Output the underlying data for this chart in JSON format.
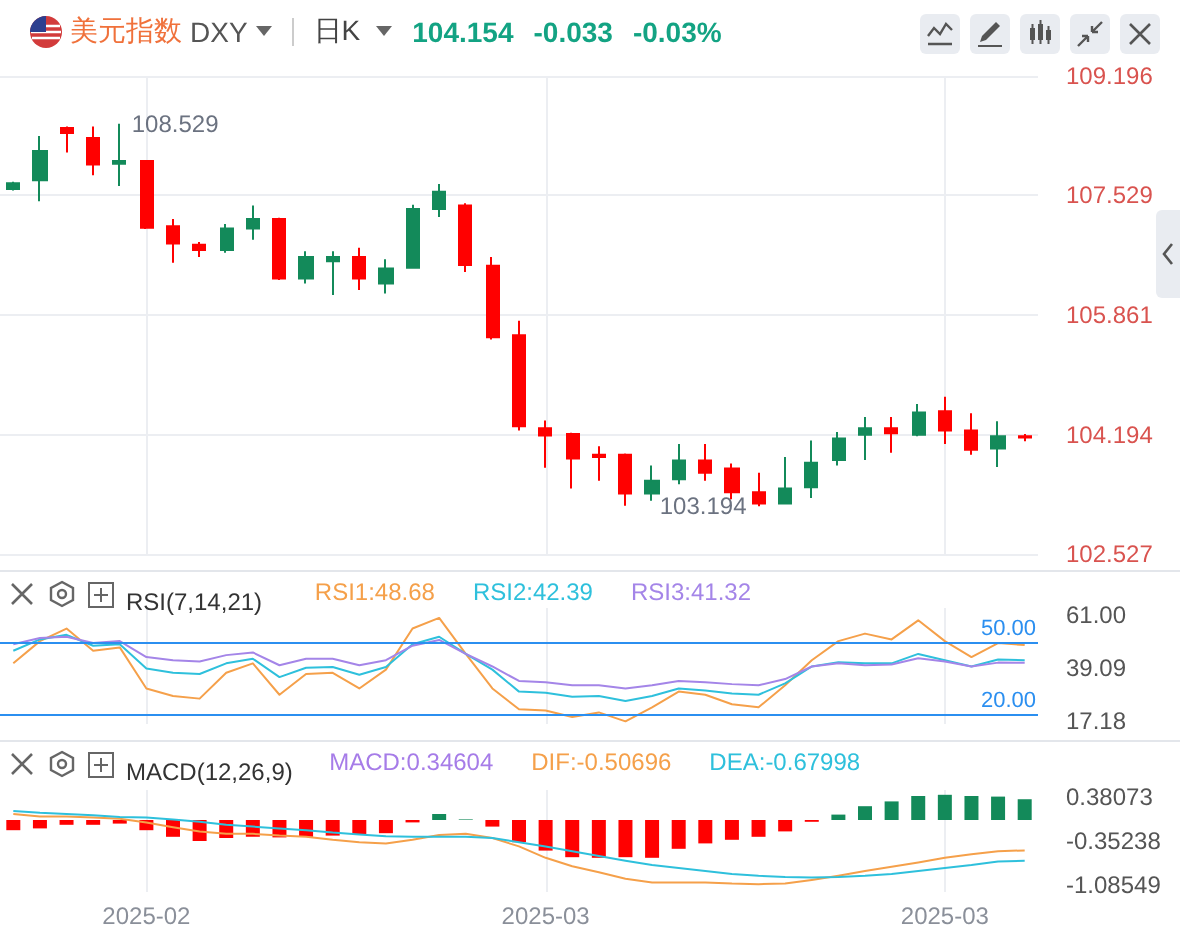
{
  "chart_data": [
    {
      "type": "candlestick",
      "title": "美元指数",
      "subtitle": "DXY",
      "annotations": [
        "日K",
        "104.154",
        "-0.033",
        "-0.03%",
        "108.529",
        "103.194"
      ],
      "categories": [
        null,
        null,
        null,
        null,
        null,
        "2025-02",
        null,
        null,
        null,
        null,
        null,
        null,
        null,
        null,
        null,
        null,
        null,
        null,
        null,
        null,
        "2025-03",
        null,
        null,
        null,
        null,
        null,
        null,
        null,
        null,
        null,
        null,
        null,
        null,
        null,
        null,
        "2025-03",
        null,
        null,
        null
      ],
      "ohlc": [
        [
          107.62,
          107.72,
          107.6,
          107.7
        ],
        [
          107.74,
          108.36,
          107.45,
          108.15
        ],
        [
          108.47,
          108.49,
          108.13,
          108.4
        ],
        [
          108.33,
          108.49,
          107.81,
          107.96
        ],
        [
          107.97,
          108.529,
          107.66,
          108.01
        ],
        [
          108.01,
          108.02,
          107.06,
          107.08
        ],
        [
          107.1,
          107.2,
          106.59,
          106.86
        ],
        [
          106.84,
          106.88,
          106.67,
          106.77
        ],
        [
          106.77,
          107.13,
          106.73,
          107.07
        ],
        [
          107.07,
          107.39,
          106.91,
          107.2
        ],
        [
          107.2,
          107.22,
          106.35,
          106.37
        ],
        [
          106.37,
          106.75,
          106.3,
          106.67
        ],
        [
          106.61,
          106.75,
          106.14,
          106.67
        ],
        [
          106.67,
          106.8,
          106.21,
          106.37
        ],
        [
          106.3,
          106.64,
          106.16,
          106.51
        ],
        [
          106.52,
          107.4,
          106.51,
          107.34
        ],
        [
          107.34,
          107.69,
          107.23,
          107.58
        ],
        [
          107.39,
          107.42,
          106.46,
          106.56
        ],
        [
          106.55,
          106.67,
          105.52,
          105.55
        ],
        [
          105.58,
          105.78,
          104.25,
          104.31
        ],
        [
          104.28,
          104.39,
          103.73,
          104.18
        ],
        [
          104.2,
          104.22,
          103.44,
          103.86
        ],
        [
          103.91,
          104.03,
          103.55,
          103.88
        ],
        [
          103.91,
          103.93,
          103.2,
          103.37
        ],
        [
          103.37,
          103.76,
          103.27,
          103.55
        ],
        [
          103.57,
          104.06,
          103.5,
          103.83
        ],
        [
          103.83,
          104.06,
          103.55,
          103.66
        ],
        [
          103.72,
          103.79,
          103.29,
          103.39
        ],
        [
          103.39,
          103.66,
          103.194,
          103.23
        ],
        [
          103.23,
          103.88,
          103.23,
          103.44
        ],
        [
          103.46,
          104.11,
          103.31,
          103.8
        ],
        [
          103.84,
          104.23,
          103.76,
          104.14
        ],
        [
          104.19,
          104.44,
          103.84,
          104.28
        ],
        [
          104.28,
          104.44,
          103.94,
          104.21
        ],
        [
          104.19,
          104.62,
          104.17,
          104.5
        ],
        [
          104.52,
          104.72,
          104.06,
          104.25
        ],
        [
          104.25,
          104.49,
          103.91,
          103.98
        ],
        [
          104.0,
          104.38,
          103.74,
          104.17
        ],
        [
          104.17,
          104.2,
          104.1,
          104.154
        ]
      ],
      "colors": [
        "#138a5a",
        "#138a5a",
        "#ff0000",
        "#ff0000",
        "#138a5a",
        "#ff0000",
        "#ff0000",
        "#ff0000",
        "#138a5a",
        "#138a5a",
        "#ff0000",
        "#138a5a",
        "#138a5a",
        "#ff0000",
        "#138a5a",
        "#138a5a",
        "#138a5a",
        "#ff0000",
        "#ff0000",
        "#ff0000",
        "#ff0000",
        "#ff0000",
        "#ff0000",
        "#ff0000",
        "#138a5a",
        "#138a5a",
        "#ff0000",
        "#ff0000",
        "#ff0000",
        "#138a5a",
        "#138a5a",
        "#138a5a",
        "#138a5a",
        "#ff0000",
        "#138a5a",
        "#ff0000",
        "#ff0000",
        "#138a5a",
        "#ff0000"
      ],
      "ylim": [
        102.527,
        109.196
      ],
      "yticks": [
        102.527,
        104.194,
        105.861,
        107.529,
        109.196
      ],
      "grid": true,
      "tick_labels": "y"
    },
    {
      "type": "line",
      "title": "RSI(7,14,21)",
      "legend": "top",
      "categories": [
        null,
        null,
        null,
        null,
        null,
        "2025-02",
        null,
        null,
        null,
        null,
        null,
        null,
        null,
        null,
        null,
        null,
        null,
        null,
        null,
        null,
        "2025-03",
        null,
        null,
        null,
        null,
        null,
        null,
        null,
        null,
        null,
        null,
        null,
        null,
        null,
        null,
        "2025-03",
        null,
        null,
        null
      ],
      "series": [
        {
          "name": "RSI1:48.68",
          "color": "#f5a04a",
          "values": [
            41.1,
            50.3,
            55.5,
            46.3,
            47.7,
            30.7,
            27.6,
            26.5,
            37.2,
            41.1,
            28.1,
            36.7,
            37.2,
            30.7,
            38.5,
            55.5,
            59.9,
            45.0,
            30.7,
            22.1,
            21.6,
            18.9,
            20.8,
            17.1,
            22.9,
            29.4,
            28.1,
            24.2,
            22.9,
            32.0,
            42.4,
            50.3,
            53.4,
            51.0,
            58.9,
            50.3,
            43.7,
            49.5,
            48.68
          ]
        },
        {
          "name": "RSI2:42.39",
          "color": "#2ec0dc",
          "values": [
            46.3,
            51.0,
            52.9,
            48.4,
            49.0,
            39.0,
            37.2,
            36.7,
            41.1,
            43.0,
            35.4,
            39.3,
            39.6,
            36.4,
            39.6,
            49.0,
            52.1,
            45.0,
            38.5,
            29.4,
            28.9,
            27.3,
            27.6,
            25.5,
            27.6,
            30.7,
            29.9,
            28.6,
            28.1,
            32.8,
            39.8,
            41.6,
            41.1,
            41.1,
            45.0,
            42.4,
            39.8,
            42.7,
            42.39
          ]
        },
        {
          "name": "RSI3:41.32",
          "color": "#a485e8",
          "values": [
            49.0,
            51.6,
            52.1,
            49.5,
            50.3,
            43.7,
            42.4,
            41.9,
            44.5,
            45.6,
            40.3,
            43.0,
            43.0,
            40.3,
            42.4,
            48.4,
            50.8,
            45.0,
            39.8,
            33.8,
            33.3,
            32.0,
            32.0,
            30.7,
            32.0,
            33.8,
            33.3,
            32.5,
            32.0,
            34.6,
            39.8,
            41.1,
            40.3,
            40.6,
            43.2,
            41.9,
            39.8,
            41.4,
            41.32
          ]
        }
      ],
      "ref_lines": [
        {
          "axis": "y",
          "value": 50,
          "label": "50.00",
          "color": "#2b8ff0"
        },
        {
          "axis": "y",
          "value": 20,
          "label": "20.00",
          "color": "#2b8ff0"
        }
      ],
      "ylim": [
        16,
        64
      ],
      "yticks": [
        {
          "value": 17.18,
          "label": "17.18"
        },
        {
          "value": 39.09,
          "label": "39.09"
        },
        {
          "value": 61,
          "label": "61.00"
        }
      ],
      "grid": "x",
      "tick_labels": "y"
    },
    {
      "type": "bar",
      "title": "MACD(12,26,9)",
      "legend": "top",
      "categories": [
        null,
        null,
        null,
        null,
        null,
        "2025-02",
        null,
        null,
        null,
        null,
        null,
        null,
        null,
        null,
        null,
        null,
        null,
        null,
        null,
        null,
        "2025-03",
        null,
        null,
        null,
        null,
        null,
        null,
        null,
        null,
        null,
        null,
        null,
        null,
        null,
        null,
        "2025-03",
        null,
        null,
        null
      ],
      "series": [
        {
          "name": "MACD:0.34604",
          "color": "#a67ce8",
          "values": [
            -0.17,
            -0.14,
            -0.08,
            -0.08,
            -0.06,
            -0.17,
            -0.28,
            -0.35,
            -0.3,
            -0.28,
            -0.29,
            -0.28,
            -0.26,
            -0.25,
            -0.22,
            -0.04,
            0.1,
            0.01,
            -0.11,
            -0.37,
            -0.51,
            -0.62,
            -0.63,
            -0.62,
            -0.63,
            -0.48,
            -0.39,
            -0.33,
            -0.28,
            -0.19,
            -0.03,
            0.09,
            0.23,
            0.31,
            0.4,
            0.42,
            0.4,
            0.39,
            0.34604
          ],
          "colors": [
            "#ff0000",
            "#ff0000",
            "#ff0000",
            "#ff0000",
            "#ff0000",
            "#ff0000",
            "#ff0000",
            "#ff0000",
            "#ff0000",
            "#ff0000",
            "#ff0000",
            "#ff0000",
            "#ff0000",
            "#ff0000",
            "#ff0000",
            "#ff0000",
            "#138a5a",
            "#138a5a",
            "#ff0000",
            "#ff0000",
            "#ff0000",
            "#ff0000",
            "#ff0000",
            "#ff0000",
            "#ff0000",
            "#ff0000",
            "#ff0000",
            "#ff0000",
            "#ff0000",
            "#ff0000",
            "#ff0000",
            "#138a5a",
            "#138a5a",
            "#138a5a",
            "#138a5a",
            "#138a5a",
            "#138a5a",
            "#138a5a",
            "#138a5a"
          ]
        },
        {
          "name": "DIF:-0.50696",
          "type": "line",
          "color": "#f5a04a",
          "values": [
            0.1,
            0.06,
            0.06,
            0.04,
            0.02,
            -0.04,
            -0.12,
            -0.19,
            -0.23,
            -0.23,
            -0.26,
            -0.28,
            -0.33,
            -0.37,
            -0.39,
            -0.33,
            -0.25,
            -0.23,
            -0.3,
            -0.44,
            -0.63,
            -0.77,
            -0.87,
            -0.98,
            -1.04,
            -1.04,
            -1.04,
            -1.06,
            -1.07,
            -1.06,
            -1.0,
            -0.93,
            -0.85,
            -0.78,
            -0.71,
            -0.63,
            -0.57,
            -0.52,
            -0.50696
          ]
        },
        {
          "name": "DEA:-0.67998",
          "type": "line",
          "color": "#2ec0dc",
          "values": [
            0.15,
            0.12,
            0.1,
            0.08,
            0.05,
            0.04,
            0.01,
            -0.03,
            -0.08,
            -0.11,
            -0.14,
            -0.17,
            -0.21,
            -0.24,
            -0.27,
            -0.28,
            -0.28,
            -0.28,
            -0.3,
            -0.37,
            -0.44,
            -0.52,
            -0.6,
            -0.68,
            -0.75,
            -0.8,
            -0.85,
            -0.9,
            -0.93,
            -0.95,
            -0.96,
            -0.95,
            -0.93,
            -0.9,
            -0.85,
            -0.8,
            -0.75,
            -0.69,
            -0.67998
          ]
        }
      ],
      "ylim": [
        -1.2,
        0.5
      ],
      "yticks": [
        -1.08549,
        -0.35238,
        0.38073
      ],
      "grid": "x"
    }
  ]
}
